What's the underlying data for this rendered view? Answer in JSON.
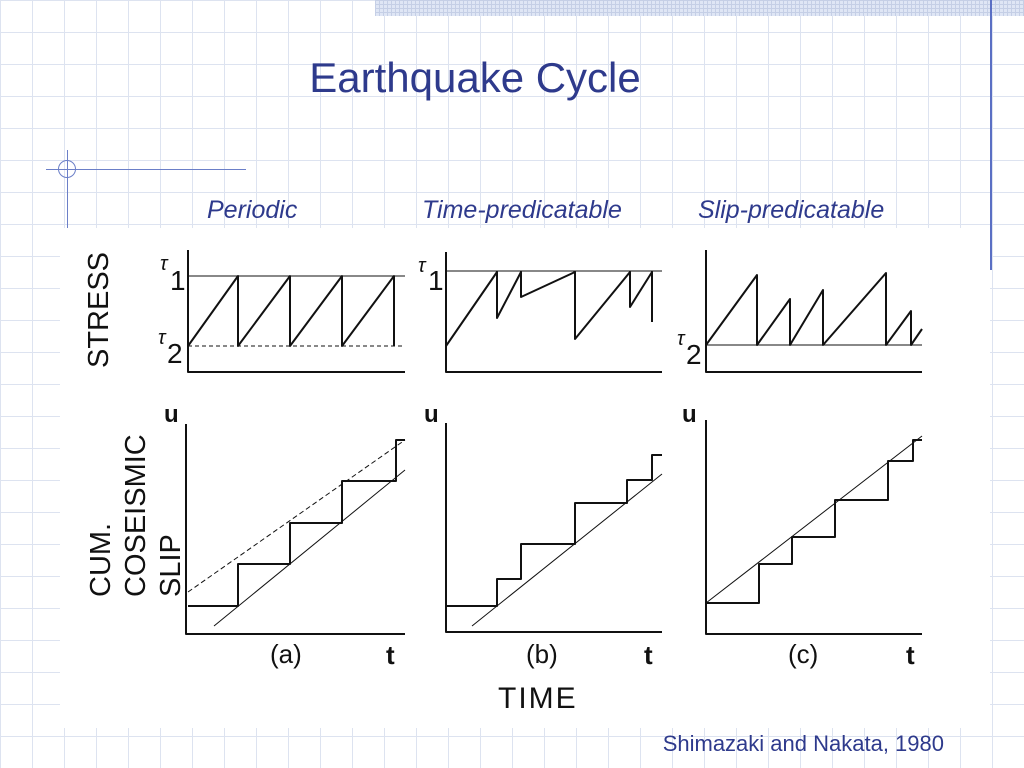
{
  "slide": {
    "title": "Earthquake Cycle",
    "column_labels": [
      "Periodic",
      "Time-predicatable",
      "Slip-predicatable"
    ],
    "citation": "Shimazaki and Nakata, 1980"
  },
  "figure": {
    "stress_axis_label": "STRESS",
    "slip_axis_label_lines": [
      "CUM.",
      "COSEISMIC",
      "SLIP"
    ],
    "time_axis_label": "TIME",
    "tau1": "τ",
    "tau1_sub": "1",
    "tau2": "τ",
    "tau2_sub": "2",
    "u_label": "u",
    "t_label": "t",
    "panel_labels": [
      "(a)",
      "(b)",
      "(c)"
    ]
  },
  "colors": {
    "title": "#2e3a8c",
    "grid": "#dde3f0",
    "ink": "#111111"
  }
}
